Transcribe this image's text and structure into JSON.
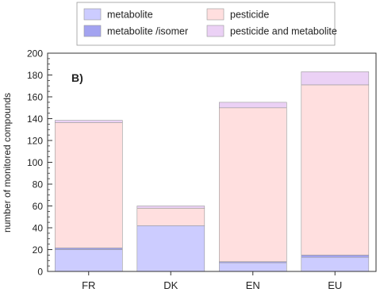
{
  "chart_data": {
    "type": "bar",
    "stacked": true,
    "panel_label": "B)",
    "title": "",
    "xlabel": "",
    "ylabel": "number of monitored compounds",
    "ylim": [
      0,
      200
    ],
    "yticks": [
      0,
      20,
      40,
      60,
      80,
      100,
      120,
      140,
      160,
      180,
      200
    ],
    "minor_ytick_step": 5,
    "grid": false,
    "legend_placement": "top",
    "categories": [
      "FR",
      "DK",
      "EN",
      "EU"
    ],
    "series": [
      {
        "name": "metabolite",
        "color": "#ccccff",
        "values": [
          20,
          42,
          8,
          13
        ]
      },
      {
        "name": "metabolite /isomer",
        "color": "#a3a3f0",
        "values": [
          1.5,
          0,
          1,
          2
        ]
      },
      {
        "name": "pesticide",
        "color": "#ffdfdf",
        "values": [
          115,
          16,
          141,
          156
        ]
      },
      {
        "name": "pesticide and metabolite",
        "color": "#ebd1f5",
        "values": [
          2,
          2,
          5,
          12
        ]
      }
    ]
  }
}
